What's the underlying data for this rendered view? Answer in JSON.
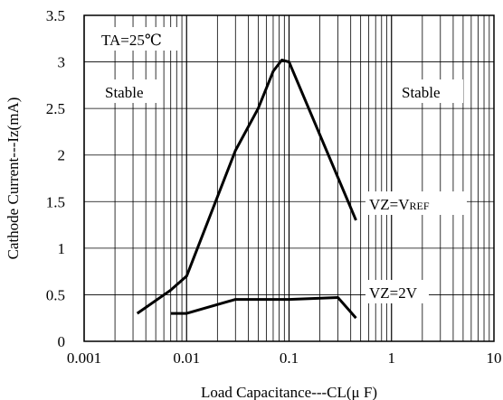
{
  "chart_data": {
    "type": "line",
    "title": "",
    "xlabel": "Load Capacitance---CL(μ F)",
    "ylabel": "Cathode Current---Iz(mA)",
    "x_scale": "log",
    "xlim": [
      0.001,
      10
    ],
    "ylim": [
      0,
      3.5
    ],
    "grid": true,
    "x_ticks": [
      0.001,
      0.01,
      0.1,
      1,
      10
    ],
    "x_tick_labels": [
      "0.001",
      "0.01",
      "0.1",
      "1",
      "10"
    ],
    "y_ticks": [
      0,
      0.5,
      1,
      1.5,
      2,
      2.5,
      3,
      3.5
    ],
    "y_tick_labels": [
      "0",
      "0.5",
      "1",
      "1.5",
      "2",
      "2.5",
      "3",
      "3.5"
    ],
    "series": [
      {
        "name": "VZ=VREF",
        "label_main": "VZ=V",
        "label_sub": "REF",
        "x": [
          0.0033,
          0.007,
          0.01,
          0.03,
          0.05,
          0.07,
          0.085,
          0.1,
          0.45
        ],
        "y": [
          0.3,
          0.55,
          0.7,
          2.05,
          2.5,
          2.9,
          3.02,
          3.0,
          1.3
        ]
      },
      {
        "name": "VZ=2V",
        "label_main": "VZ=2V",
        "label_sub": "",
        "x": [
          0.007,
          0.01,
          0.03,
          0.1,
          0.3,
          0.45
        ],
        "y": [
          0.3,
          0.3,
          0.45,
          0.45,
          0.47,
          0.25
        ]
      }
    ],
    "annotations": {
      "temperature": "TA=25℃",
      "stable_left": "Stable",
      "stable_right": "Stable"
    },
    "colors": {
      "line": "#000000",
      "grid": "#000000",
      "background": "#ffffff"
    }
  }
}
